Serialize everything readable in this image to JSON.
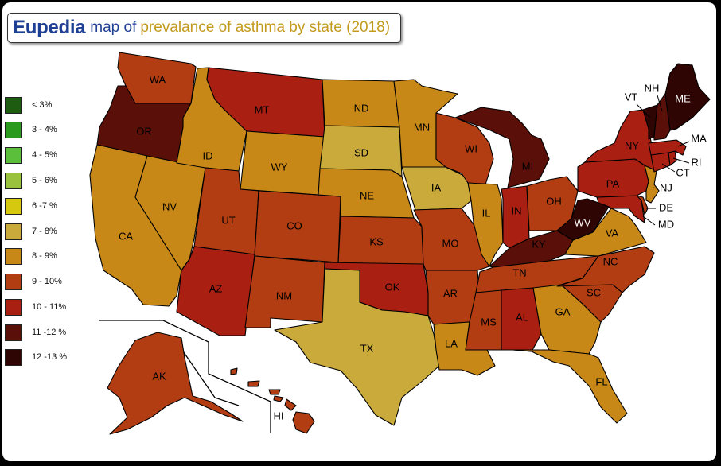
{
  "title": {
    "brand": "Eupedia",
    "part1": "map of",
    "part2": "prevalance of asthma by state (2018)"
  },
  "legend": [
    {
      "label": "< 3%",
      "color": "#1e5c12"
    },
    {
      "label": "3 - 4%",
      "color": "#2a9a1c"
    },
    {
      "label": "4 - 5%",
      "color": "#5cbf3b"
    },
    {
      "label": "5 - 6%",
      "color": "#9bc23c"
    },
    {
      "label": "6 -7 %",
      "color": "#d6c80f"
    },
    {
      "label": "7 - 8%",
      "color": "#c9aa3b"
    },
    {
      "label": "8 - 9%",
      "color": "#c88818"
    },
    {
      "label": "9 - 10%",
      "color": "#b23d12"
    },
    {
      "label": "10 - 11%",
      "color": "#a91f12"
    },
    {
      "label": "11 -12 %",
      "color": "#5a1008"
    },
    {
      "label": "12 -13 %",
      "color": "#2e0503"
    }
  ],
  "states": [
    {
      "abbr": "WA",
      "bin": 7
    },
    {
      "abbr": "OR",
      "bin": 9
    },
    {
      "abbr": "CA",
      "bin": 6
    },
    {
      "abbr": "ID",
      "bin": 6
    },
    {
      "abbr": "NV",
      "bin": 6
    },
    {
      "abbr": "MT",
      "bin": 8
    },
    {
      "abbr": "WY",
      "bin": 6
    },
    {
      "abbr": "UT",
      "bin": 7
    },
    {
      "abbr": "AZ",
      "bin": 8
    },
    {
      "abbr": "CO",
      "bin": 7
    },
    {
      "abbr": "NM",
      "bin": 7
    },
    {
      "abbr": "ND",
      "bin": 6
    },
    {
      "abbr": "SD",
      "bin": 5
    },
    {
      "abbr": "NE",
      "bin": 6
    },
    {
      "abbr": "KS",
      "bin": 7
    },
    {
      "abbr": "OK",
      "bin": 8
    },
    {
      "abbr": "TX",
      "bin": 5
    },
    {
      "abbr": "MN",
      "bin": 6
    },
    {
      "abbr": "IA",
      "bin": 5
    },
    {
      "abbr": "MO",
      "bin": 7
    },
    {
      "abbr": "AR",
      "bin": 7
    },
    {
      "abbr": "LA",
      "bin": 6
    },
    {
      "abbr": "WI",
      "bin": 7
    },
    {
      "abbr": "IL",
      "bin": 6
    },
    {
      "abbr": "MI",
      "bin": 9
    },
    {
      "abbr": "IN",
      "bin": 8
    },
    {
      "abbr": "OH",
      "bin": 7
    },
    {
      "abbr": "KY",
      "bin": 9
    },
    {
      "abbr": "TN",
      "bin": 7
    },
    {
      "abbr": "MS",
      "bin": 7
    },
    {
      "abbr": "AL",
      "bin": 8
    },
    {
      "abbr": "GA",
      "bin": 6
    },
    {
      "abbr": "FL",
      "bin": 6
    },
    {
      "abbr": "SC",
      "bin": 7
    },
    {
      "abbr": "NC",
      "bin": 7
    },
    {
      "abbr": "VA",
      "bin": 6
    },
    {
      "abbr": "WV",
      "bin": 10
    },
    {
      "abbr": "PA",
      "bin": 8
    },
    {
      "abbr": "NY",
      "bin": 8
    },
    {
      "abbr": "VT",
      "bin": 10
    },
    {
      "abbr": "NH",
      "bin": 9
    },
    {
      "abbr": "ME",
      "bin": 10
    },
    {
      "abbr": "MA",
      "bin": 8
    },
    {
      "abbr": "RI",
      "bin": 8
    },
    {
      "abbr": "CT",
      "bin": 8
    },
    {
      "abbr": "NJ",
      "bin": 6
    },
    {
      "abbr": "DE",
      "bin": 7
    },
    {
      "abbr": "MD",
      "bin": 8
    },
    {
      "abbr": "AK",
      "bin": 7
    },
    {
      "abbr": "HI",
      "bin": 7
    }
  ]
}
